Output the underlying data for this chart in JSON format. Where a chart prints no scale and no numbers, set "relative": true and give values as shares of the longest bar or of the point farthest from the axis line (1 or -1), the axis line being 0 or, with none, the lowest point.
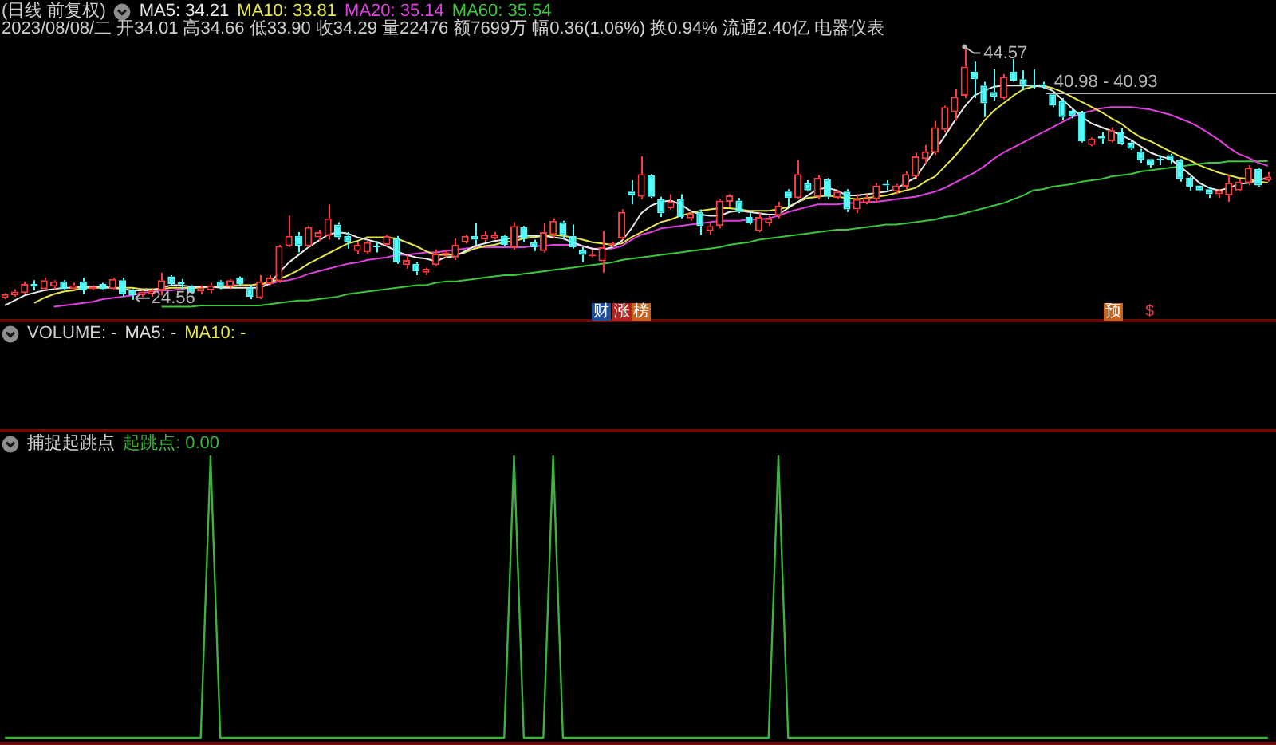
{
  "chart_data": [
    {
      "type": "candlestick",
      "title": "(日线 前复权)",
      "subtitle": "2023/08/08/二 开34.01 高34.66 低33.90 收34.29 量22476 额7699万 幅0.36(1.06%) 换0.94% 流通2.40亿 电器仪表",
      "legend": "top left",
      "marker": "none",
      "tick_labels": false,
      "categories": [
        null,
        null,
        null,
        null,
        null,
        null,
        null,
        null,
        null,
        null,
        null,
        null,
        null,
        null,
        null,
        null,
        null,
        null,
        null,
        null,
        null,
        null,
        null,
        null,
        null,
        null,
        null,
        null,
        null,
        null,
        null,
        null,
        null,
        null,
        null,
        null,
        null,
        null,
        null,
        null,
        null,
        null,
        null,
        null,
        null,
        null,
        null,
        null,
        null,
        null,
        null,
        null,
        null,
        null,
        null,
        null,
        null,
        null,
        null,
        null,
        null,
        null,
        null,
        null,
        null,
        null,
        null,
        null,
        null,
        null,
        null,
        null,
        null,
        null,
        null,
        null,
        null,
        null,
        null,
        null,
        null,
        null,
        null,
        null,
        null,
        null,
        null,
        null,
        null,
        null,
        null,
        null,
        null,
        null,
        null,
        null,
        null,
        null,
        null,
        null,
        null,
        null,
        null,
        null,
        null,
        null,
        null,
        null,
        null,
        null,
        null,
        null,
        null,
        null,
        null,
        null,
        null,
        null,
        null,
        null,
        null,
        null,
        null,
        null,
        null,
        null,
        null,
        null,
        null,
        null
      ],
      "ohlc": [
        [
          24.7,
          25.1,
          24.6,
          25.0
        ],
        [
          24.9,
          25.4,
          24.8,
          25.2
        ],
        [
          25.1,
          26.0,
          25.0,
          25.8
        ],
        [
          25.8,
          26.1,
          25.3,
          25.6
        ],
        [
          25.4,
          26.3,
          25.3,
          26.1
        ],
        [
          25.6,
          26.1,
          25.4,
          26.0
        ],
        [
          26.0,
          26.1,
          25.3,
          25.4
        ],
        [
          25.4,
          25.9,
          25.3,
          25.7
        ],
        [
          26.0,
          26.3,
          25.0,
          25.3
        ],
        [
          25.4,
          25.7,
          25.3,
          25.6
        ],
        [
          25.8,
          25.9,
          25.3,
          25.4
        ],
        [
          25.4,
          26.3,
          25.3,
          26.2
        ],
        [
          26.1,
          26.3,
          24.8,
          25.0
        ],
        [
          25.3,
          25.4,
          24.56,
          24.9
        ],
        [
          24.9,
          25.3,
          24.8,
          25.2
        ],
        [
          25.0,
          25.4,
          24.8,
          25.3
        ],
        [
          25.3,
          26.7,
          24.9,
          26.1
        ],
        [
          26.4,
          26.5,
          25.7,
          25.8
        ],
        [
          25.9,
          26.2,
          25.4,
          25.8
        ],
        [
          25.6,
          25.7,
          25.0,
          25.1
        ],
        [
          25.2,
          25.7,
          25.0,
          25.5
        ],
        [
          25.3,
          25.9,
          25.1,
          25.7
        ],
        [
          26.0,
          26.1,
          25.4,
          25.6
        ],
        [
          25.6,
          26.2,
          25.4,
          26.1
        ],
        [
          26.3,
          26.4,
          25.7,
          25.8
        ],
        [
          25.5,
          25.7,
          24.6,
          24.8
        ],
        [
          24.7,
          26.5,
          24.6,
          26.0
        ],
        [
          25.8,
          26.5,
          25.7,
          26.3
        ],
        [
          26.0,
          28.9,
          25.9,
          28.8
        ],
        [
          28.8,
          31.2,
          28.7,
          29.6
        ],
        [
          29.6,
          29.9,
          28.3,
          28.8
        ],
        [
          28.8,
          30.4,
          28.7,
          30.3
        ],
        [
          29.5,
          30.1,
          29.2,
          29.9
        ],
        [
          29.6,
          32.1,
          29.3,
          31.0
        ],
        [
          30.5,
          30.7,
          29.3,
          29.5
        ],
        [
          29.6,
          29.9,
          28.6,
          29.1
        ],
        [
          28.4,
          29.1,
          28.2,
          28.9
        ],
        [
          28.3,
          29.2,
          28.2,
          29.1
        ],
        [
          28.8,
          29.2,
          28.3,
          28.7
        ],
        [
          28.9,
          29.7,
          28.8,
          29.6
        ],
        [
          29.4,
          29.6,
          27.4,
          27.5
        ],
        [
          27.3,
          28.1,
          27.0,
          27.7
        ],
        [
          27.4,
          27.5,
          26.5,
          26.8
        ],
        [
          26.7,
          27.1,
          26.5,
          27.0
        ],
        [
          27.3,
          28.5,
          27.2,
          28.2
        ],
        [
          28.1,
          28.5,
          27.9,
          28.3
        ],
        [
          27.9,
          29.4,
          27.7,
          28.9
        ],
        [
          29.1,
          29.7,
          29.0,
          29.6
        ],
        [
          29.6,
          30.6,
          28.9,
          29.3
        ],
        [
          29.3,
          30.0,
          29.1,
          29.7
        ],
        [
          29.4,
          29.9,
          29.3,
          29.7
        ],
        [
          29.6,
          29.7,
          28.8,
          28.9
        ],
        [
          28.7,
          30.7,
          28.5,
          30.4
        ],
        [
          30.3,
          30.4,
          29.1,
          29.4
        ],
        [
          29.1,
          29.3,
          28.4,
          28.7
        ],
        [
          28.4,
          30.6,
          28.3,
          29.9
        ],
        [
          29.7,
          31.0,
          29.4,
          30.8
        ],
        [
          30.7,
          30.8,
          29.4,
          29.7
        ],
        [
          29.6,
          30.5,
          28.6,
          28.7
        ],
        [
          28.5,
          28.7,
          27.5,
          28.1
        ],
        [
          28.0,
          28.5,
          27.9,
          28.1
        ],
        [
          27.6,
          30.0,
          26.7,
          28.7
        ],
        [
          28.9,
          29.1,
          28.7,
          29.0
        ],
        [
          29.4,
          31.7,
          29.3,
          31.5
        ],
        [
          33.1,
          34.0,
          32.1,
          32.8
        ],
        [
          32.7,
          35.9,
          32.5,
          34.5
        ],
        [
          34.4,
          34.5,
          32.6,
          32.7
        ],
        [
          32.5,
          32.7,
          31.1,
          31.4
        ],
        [
          31.8,
          32.9,
          31.7,
          32.3
        ],
        [
          32.5,
          32.9,
          31.0,
          31.1
        ],
        [
          31.0,
          31.5,
          30.8,
          31.4
        ],
        [
          31.5,
          31.7,
          29.7,
          30.4
        ],
        [
          30.0,
          30.6,
          29.7,
          30.4
        ],
        [
          30.4,
          32.5,
          30.2,
          32.4
        ],
        [
          32.3,
          32.9,
          31.9,
          32.8
        ],
        [
          32.4,
          32.6,
          31.4,
          31.5
        ],
        [
          31.1,
          31.4,
          30.5,
          30.6
        ],
        [
          30.0,
          31.4,
          29.9,
          31.1
        ],
        [
          30.6,
          31.2,
          30.4,
          31.0
        ],
        [
          31.2,
          32.3,
          31.0,
          32.0
        ],
        [
          33.1,
          33.3,
          31.9,
          32.6
        ],
        [
          32.6,
          35.6,
          32.5,
          34.5
        ],
        [
          33.8,
          34.0,
          33.1,
          33.2
        ],
        [
          32.7,
          34.4,
          32.5,
          34.2
        ],
        [
          34.1,
          34.2,
          32.5,
          32.7
        ],
        [
          32.6,
          33.2,
          32.5,
          33.1
        ],
        [
          33.1,
          33.3,
          31.5,
          31.7
        ],
        [
          31.7,
          32.9,
          31.4,
          32.5
        ],
        [
          32.2,
          32.9,
          32.1,
          32.6
        ],
        [
          32.5,
          33.8,
          32.2,
          33.6
        ],
        [
          33.7,
          34.0,
          33.2,
          33.6
        ],
        [
          33.1,
          33.7,
          32.9,
          33.6
        ],
        [
          33.5,
          34.7,
          33.3,
          34.5
        ],
        [
          34.3,
          36.2,
          34.1,
          35.9
        ],
        [
          35.7,
          36.8,
          35.3,
          36.3
        ],
        [
          36.2,
          38.7,
          36.0,
          38.2
        ],
        [
          38.0,
          39.9,
          37.8,
          39.8
        ],
        [
          39.4,
          41.2,
          38.7,
          40.6
        ],
        [
          40.7,
          44.57,
          40.5,
          43.0
        ],
        [
          42.6,
          43.4,
          40.5,
          42.0
        ],
        [
          41.5,
          41.8,
          39.0,
          40.1
        ],
        [
          41.0,
          42.8,
          40.3,
          40.6
        ],
        [
          40.5,
          42.4,
          40.4,
          42.2
        ],
        [
          42.6,
          43.6,
          41.8,
          41.9
        ],
        [
          42.0,
          42.7,
          41.1,
          41.5
        ],
        [
          41.5,
          42.8,
          41.2,
          41.4
        ],
        [
          41.6,
          41.8,
          41.2,
          41.4
        ],
        [
          40.8,
          41.0,
          39.8,
          39.9
        ],
        [
          40.3,
          40.5,
          38.8,
          39.0
        ],
        [
          39.5,
          39.6,
          38.9,
          39.1
        ],
        [
          39.4,
          39.5,
          37.0,
          37.1
        ],
        [
          36.8,
          37.4,
          36.7,
          37.3
        ],
        [
          37.5,
          37.8,
          36.9,
          37.3
        ],
        [
          37.1,
          38.2,
          37.0,
          38.0
        ],
        [
          37.8,
          38.1,
          36.8,
          36.9
        ],
        [
          37.0,
          37.1,
          36.4,
          36.5
        ],
        [
          36.3,
          36.5,
          35.4,
          35.6
        ],
        [
          35.7,
          35.7,
          35.0,
          35.2
        ],
        [
          35.7,
          36.0,
          35.2,
          35.6
        ],
        [
          36.0,
          36.1,
          35.3,
          35.6
        ],
        [
          35.6,
          35.7,
          33.9,
          34.1
        ],
        [
          34.2,
          34.3,
          33.2,
          33.5
        ],
        [
          33.6,
          33.6,
          33.1,
          33.2
        ],
        [
          33.3,
          33.5,
          32.6,
          32.9
        ],
        [
          32.9,
          33.3,
          32.6,
          33.2
        ],
        [
          32.8,
          34.4,
          32.3,
          33.8
        ],
        [
          33.2,
          34.1,
          33.1,
          33.9
        ],
        [
          33.8,
          35.2,
          33.6,
          35.0
        ],
        [
          34.9,
          35.0,
          33.5,
          33.6
        ],
        [
          34.01,
          34.66,
          33.9,
          34.29
        ]
      ],
      "series": [
        {
          "name": "MA5: 34.21",
          "type": "line",
          "color": "#e8e8e8",
          "values": [
            24.1,
            24.5,
            24.9,
            25.1,
            25.3,
            25.4,
            25.5,
            25.5,
            25.6,
            25.6,
            25.6,
            25.5,
            25.4,
            25.3,
            25.3,
            25.3,
            25.5,
            25.7,
            25.7,
            25.6,
            25.6,
            25.6,
            25.5,
            25.5,
            25.5,
            25.5,
            25.5,
            25.8,
            26.7,
            27.5,
            28.1,
            28.7,
            29.2,
            29.7,
            29.9,
            29.8,
            29.5,
            29.3,
            29.1,
            28.8,
            28.4,
            28.1,
            27.9,
            27.8,
            27.6,
            27.9,
            28.0,
            28.4,
            28.8,
            29.0,
            29.2,
            29.3,
            29.5,
            29.6,
            29.6,
            29.6,
            29.5,
            29.4,
            29.1,
            28.8,
            28.6,
            28.5,
            28.7,
            29.2,
            30.2,
            31.4,
            32.0,
            32.3,
            32.4,
            32.1,
            31.6,
            31.3,
            31.2,
            31.2,
            31.5,
            31.6,
            31.5,
            31.4,
            31.3,
            31.3,
            31.8,
            32.3,
            32.8,
            33.3,
            33.4,
            33.2,
            32.8,
            32.8,
            32.9,
            33.0,
            33.1,
            33.3,
            33.8,
            34.2,
            35.3,
            36.4,
            37.5,
            38.7,
            39.8,
            40.7,
            41.1,
            41.4,
            41.5,
            41.5,
            41.5,
            41.5,
            41.4,
            41.1,
            40.4,
            39.7,
            39.0,
            38.5,
            38.2,
            37.9,
            37.6,
            37.2,
            36.7,
            36.2,
            35.9,
            35.7,
            35.1,
            34.5,
            33.8,
            33.4,
            33.2,
            33.4,
            33.7,
            33.8,
            34.0,
            34.21
          ]
        },
        {
          "name": "MA10: 33.81",
          "type": "line",
          "color": "#e6e64a",
          "values": [
            null,
            null,
            null,
            24.3,
            24.7,
            25.0,
            25.2,
            25.3,
            25.5,
            25.5,
            25.5,
            25.5,
            25.5,
            25.5,
            25.4,
            25.4,
            25.4,
            25.5,
            25.5,
            25.5,
            25.5,
            25.6,
            25.6,
            25.6,
            25.7,
            25.7,
            25.8,
            25.9,
            26.2,
            26.5,
            26.9,
            27.4,
            27.8,
            28.2,
            28.6,
            29.0,
            29.2,
            29.5,
            29.5,
            29.5,
            29.4,
            29.1,
            28.8,
            28.4,
            28.1,
            28.1,
            28.1,
            28.3,
            28.6,
            28.8,
            28.9,
            29.1,
            29.2,
            29.4,
            29.5,
            29.6,
            29.7,
            29.6,
            29.5,
            29.3,
            29.1,
            29.0,
            28.9,
            29.0,
            29.5,
            29.9,
            30.3,
            30.7,
            30.9,
            31.2,
            31.4,
            31.6,
            31.7,
            31.8,
            31.8,
            31.7,
            31.6,
            31.6,
            31.6,
            31.7,
            31.9,
            32.3,
            32.6,
            32.7,
            32.8,
            32.7,
            32.6,
            32.5,
            32.6,
            32.7,
            32.8,
            33.0,
            33.2,
            33.4,
            33.9,
            34.3,
            35.1,
            35.9,
            36.8,
            37.7,
            38.7,
            39.5,
            40.1,
            40.7,
            41.2,
            41.4,
            41.5,
            41.3,
            41.0,
            40.6,
            40.2,
            39.8,
            39.4,
            38.9,
            38.5,
            37.9,
            37.4,
            37.1,
            36.7,
            36.3,
            35.9,
            35.6,
            35.2,
            34.9,
            34.6,
            34.4,
            34.2,
            34.1,
            33.9,
            33.81
          ]
        },
        {
          "name": "MA20: 35.14",
          "type": "line",
          "color": "#e040e0",
          "values": [
            null,
            null,
            null,
            null,
            null,
            24.0,
            24.1,
            24.2,
            24.3,
            24.4,
            24.6,
            24.7,
            24.8,
            24.9,
            25.1,
            25.2,
            25.3,
            25.3,
            25.4,
            25.5,
            25.5,
            25.6,
            25.6,
            25.7,
            25.7,
            25.7,
            25.8,
            25.8,
            26.0,
            26.1,
            26.3,
            26.6,
            26.8,
            27.0,
            27.2,
            27.4,
            27.5,
            27.7,
            27.8,
            27.9,
            28.1,
            28.1,
            28.2,
            28.3,
            28.3,
            28.4,
            28.5,
            28.6,
            28.7,
            28.7,
            28.7,
            28.7,
            28.7,
            28.7,
            28.8,
            28.8,
            28.9,
            28.9,
            28.9,
            28.8,
            28.6,
            28.6,
            28.6,
            28.8,
            29.3,
            29.7,
            29.9,
            30.2,
            30.3,
            30.4,
            30.5,
            30.6,
            30.7,
            30.8,
            30.8,
            30.8,
            30.9,
            30.9,
            31.0,
            31.2,
            31.5,
            31.7,
            31.9,
            32.1,
            32.1,
            32.1,
            32.2,
            32.2,
            32.3,
            32.3,
            32.4,
            32.5,
            32.6,
            32.7,
            32.9,
            33.1,
            33.4,
            33.8,
            34.2,
            34.6,
            35.1,
            35.7,
            36.2,
            36.6,
            37.0,
            37.4,
            37.8,
            38.2,
            38.6,
            39.0,
            39.3,
            39.5,
            39.7,
            39.8,
            39.8,
            39.8,
            39.7,
            39.6,
            39.4,
            39.2,
            38.9,
            38.6,
            38.2,
            37.7,
            37.2,
            36.6,
            36.1,
            35.8,
            35.4,
            35.14
          ]
        },
        {
          "name": "MA60: 35.54",
          "type": "line",
          "color": "#3cc83c",
          "values": [
            null,
            null,
            null,
            null,
            null,
            null,
            null,
            null,
            null,
            null,
            null,
            null,
            null,
            null,
            null,
            null,
            24.0,
            24.0,
            24.0,
            24.0,
            24.1,
            24.1,
            24.1,
            24.1,
            24.1,
            24.1,
            24.1,
            24.2,
            24.3,
            24.4,
            24.5,
            24.5,
            24.6,
            24.7,
            24.8,
            25.0,
            25.1,
            25.2,
            25.3,
            25.4,
            25.5,
            25.6,
            25.7,
            25.7,
            25.9,
            26.0,
            26.0,
            26.1,
            26.2,
            26.3,
            26.4,
            26.5,
            26.5,
            26.6,
            26.7,
            26.8,
            26.9,
            27.0,
            27.1,
            27.2,
            27.3,
            27.4,
            27.5,
            27.7,
            27.8,
            27.9,
            28.0,
            28.1,
            28.2,
            28.3,
            28.4,
            28.5,
            28.6,
            28.7,
            28.9,
            29.0,
            29.1,
            29.3,
            29.4,
            29.5,
            29.6,
            29.7,
            29.8,
            29.9,
            30.0,
            30.1,
            30.1,
            30.2,
            30.3,
            30.4,
            30.5,
            30.5,
            30.6,
            30.7,
            30.8,
            30.9,
            31.1,
            31.2,
            31.4,
            31.6,
            31.8,
            32.0,
            32.2,
            32.5,
            32.8,
            33.2,
            33.3,
            33.5,
            33.6,
            33.7,
            33.9,
            34.0,
            34.1,
            34.3,
            34.4,
            34.5,
            34.7,
            34.8,
            34.9,
            35.0,
            35.1,
            35.2,
            35.3,
            35.4,
            35.4,
            35.5,
            35.5,
            35.5,
            35.5,
            35.54
          ]
        }
      ],
      "annotations": [
        "44.57",
        "24.56",
        "财",
        "涨",
        "榜",
        "预",
        "$"
      ],
      "ref_lines": [
        {
          "axis": "y",
          "value": 40.98,
          "label": "40.98 - 40.93"
        }
      ]
    },
    {
      "type": "other",
      "title": "VOLUME: -",
      "annotations": [
        "MA5: -",
        "MA10: -"
      ]
    },
    {
      "type": "line",
      "title": "捕捉起跳点",
      "relative": true,
      "legend": "top left",
      "marker": "none",
      "tick_labels": false,
      "categories": [
        null,
        null,
        null,
        null,
        null,
        null,
        null,
        null,
        null,
        null,
        null,
        null,
        null,
        null,
        null,
        null,
        null,
        null,
        null,
        null,
        null,
        null,
        null,
        null,
        null,
        null,
        null,
        null,
        null,
        null,
        null,
        null,
        null,
        null,
        null,
        null,
        null,
        null,
        null,
        null,
        null,
        null,
        null,
        null,
        null,
        null,
        null,
        null,
        null,
        null,
        null,
        null,
        null,
        null,
        null,
        null,
        null,
        null,
        null,
        null,
        null,
        null,
        null,
        null,
        null,
        null,
        null,
        null,
        null,
        null,
        null,
        null,
        null,
        null,
        null,
        null,
        null,
        null,
        null,
        null,
        null,
        null,
        null,
        null,
        null,
        null,
        null,
        null,
        null,
        null,
        null,
        null,
        null,
        null,
        null,
        null,
        null,
        null,
        null,
        null,
        null,
        null,
        null,
        null,
        null,
        null,
        null,
        null,
        null,
        null,
        null,
        null,
        null,
        null,
        null,
        null,
        null,
        null,
        null,
        null,
        null,
        null,
        null,
        null,
        null,
        null,
        null,
        null,
        null,
        null
      ],
      "series": [
        {
          "name": "起跳点: 0.00",
          "color": "#3cb43c",
          "values": [
            0,
            0,
            0,
            0,
            0,
            0,
            0,
            0,
            0,
            0,
            0,
            0,
            0,
            0,
            0,
            0,
            0,
            0,
            0,
            0,
            0,
            1,
            0,
            0,
            0,
            0,
            0,
            0,
            0,
            0,
            0,
            0,
            0,
            0,
            0,
            0,
            0,
            0,
            0,
            0,
            0,
            0,
            0,
            0,
            0,
            0,
            0,
            0,
            0,
            0,
            0,
            0,
            1,
            0,
            0,
            0,
            1,
            0,
            0,
            0,
            0,
            0,
            0,
            0,
            0,
            0,
            0,
            0,
            0,
            0,
            0,
            0,
            0,
            0,
            0,
            0,
            0,
            0,
            0,
            1,
            0,
            0,
            0,
            0,
            0,
            0,
            0,
            0,
            0,
            0,
            0,
            0,
            0,
            0,
            0,
            0,
            0,
            0,
            0,
            0,
            0,
            0,
            0,
            0,
            0,
            0,
            0,
            0,
            0,
            0,
            0,
            0,
            0,
            0,
            0,
            0,
            0,
            0,
            0,
            0,
            0,
            0,
            0,
            0,
            0,
            0,
            0,
            0,
            0,
            0
          ]
        }
      ]
    }
  ]
}
